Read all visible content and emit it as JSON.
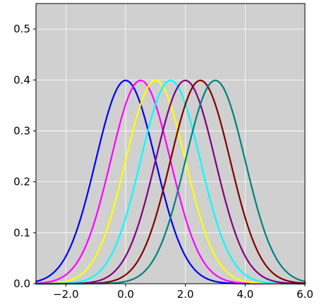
{
  "chart_data": {
    "type": "line",
    "title": "",
    "xlabel": "",
    "ylabel": "",
    "xlim": [
      -3.0,
      6.0
    ],
    "ylim": [
      0.0,
      0.55
    ],
    "grid": true,
    "background": "#d0d0d0",
    "x_ticks": [
      -2.0,
      0.0,
      2.0,
      4.0,
      6.0
    ],
    "x_tick_labels": [
      "−2.0",
      "0.0",
      "2.0",
      "4.0",
      "6.0"
    ],
    "y_ticks": [
      0.0,
      0.1,
      0.2,
      0.3,
      0.4,
      0.5
    ],
    "y_tick_labels": [
      "0.0",
      "0.1",
      "0.2",
      "0.3",
      "0.4",
      "0.5"
    ],
    "series": [
      {
        "mean": 0.0,
        "std": 1.0,
        "peak": 0.399,
        "color": "#0000ee"
      },
      {
        "mean": 0.5,
        "std": 1.0,
        "peak": 0.399,
        "color": "#ff00ff"
      },
      {
        "mean": 1.0,
        "std": 1.0,
        "peak": 0.399,
        "color": "#ffff00"
      },
      {
        "mean": 1.5,
        "std": 1.0,
        "peak": 0.399,
        "color": "#00ffff"
      },
      {
        "mean": 2.0,
        "std": 1.0,
        "peak": 0.399,
        "color": "#800080"
      },
      {
        "mean": 2.5,
        "std": 1.0,
        "peak": 0.399,
        "color": "#800000"
      },
      {
        "mean": 3.0,
        "std": 1.0,
        "peak": 0.399,
        "color": "#008080"
      }
    ]
  }
}
